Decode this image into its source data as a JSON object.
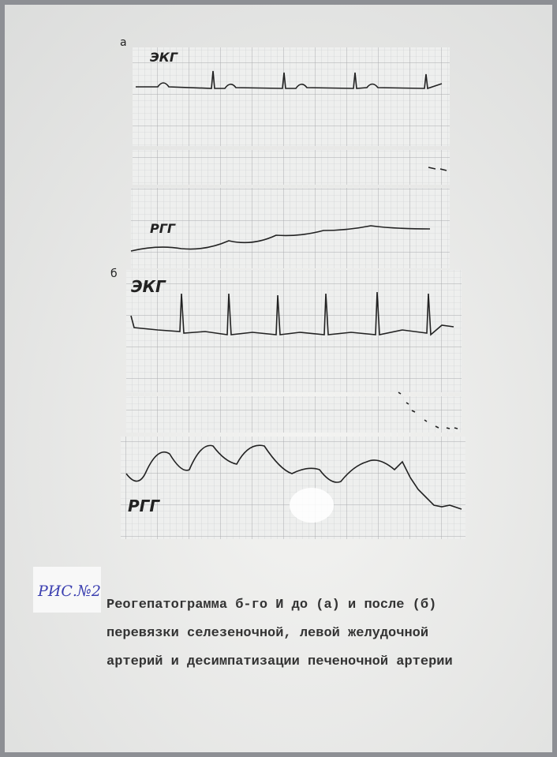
{
  "panel_a": {
    "label": "а",
    "ecg_label": "ЭКГ",
    "rgg_label": "РГГ"
  },
  "panel_b": {
    "label": "б",
    "ecg_label": "ЭКГ",
    "rgg_label": "РГГ"
  },
  "figure_label": "РИС.№2",
  "caption": [
    "Реогепатограмма б-го И до (а) и после (б)",
    "перевязки селезеночной, левой желудочной",
    "артерий и десимпатизации печеночной артерии"
  ]
}
